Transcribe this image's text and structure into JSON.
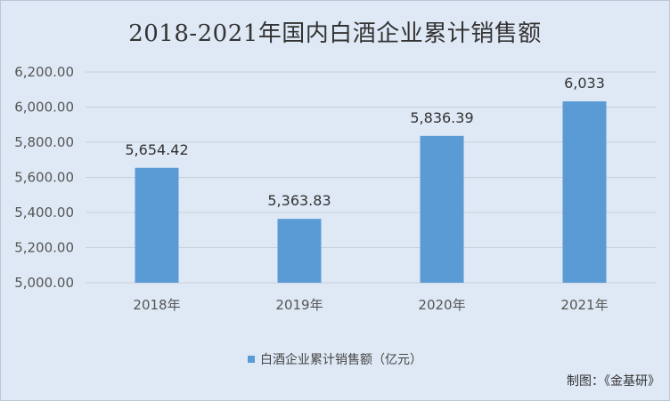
{
  "chart_data": {
    "type": "bar",
    "title": "2018-2021年国内白酒企业累计销售额",
    "categories": [
      "2018年",
      "2019年",
      "2020年",
      "2021年"
    ],
    "series": [
      {
        "name": "白酒企业累计销售额（亿元）",
        "values": [
          5654.42,
          5363.83,
          5836.39,
          6033
        ],
        "data_labels": [
          "5,654.42",
          "5,363.83",
          "5,836.39",
          "6,033"
        ]
      }
    ],
    "ylim": [
      5000,
      6200
    ],
    "yticks": [
      5000,
      5200,
      5400,
      5600,
      5800,
      6000,
      6200
    ],
    "ytick_labels": [
      "5,000.00",
      "5,200.00",
      "5,400.00",
      "5,600.00",
      "5,800.00",
      "6,000.00",
      "6,200.00"
    ],
    "grid": true,
    "legend_position": "bottom",
    "bar_color": "#5b9bd5",
    "grid_color": "#c9ced6"
  },
  "footer": {
    "source": "制图：《金基研》"
  }
}
